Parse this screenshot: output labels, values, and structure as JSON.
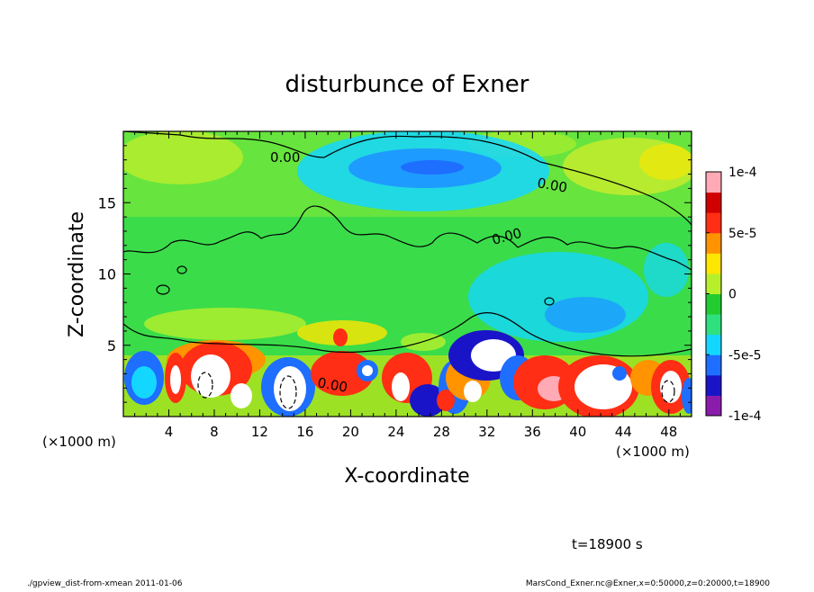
{
  "chart_data": {
    "type": "heatmap",
    "title": "disturbunce of Exner",
    "xlabel": "X-coordinate",
    "ylabel": "Z-coordinate",
    "x_unit": "(×1000 m)",
    "y_unit": "(×1000 m)",
    "xlim": [
      0,
      50
    ],
    "ylim": [
      0,
      20
    ],
    "xticks": [
      4,
      8,
      12,
      16,
      20,
      24,
      28,
      32,
      36,
      40,
      44,
      48
    ],
    "yticks": [
      5,
      10,
      15
    ],
    "colorbar": {
      "ticks": [
        {
          "value": 0.0001,
          "label": "1e-4"
        },
        {
          "value": 5e-05,
          "label": "5e-5"
        },
        {
          "value": 0,
          "label": "0"
        },
        {
          "value": -5e-05,
          "label": "-5e-5"
        },
        {
          "value": -0.0001,
          "label": "-1e-4"
        }
      ],
      "colors": [
        "#8B1CAB",
        "#1A14C8",
        "#1E6EFF",
        "#14D7FF",
        "#2FE07F",
        "#22CC30",
        "#B7F02A",
        "#FFE600",
        "#FF9300",
        "#FF2E14",
        "#D10000",
        "#FFAAB5"
      ]
    },
    "contour_labels": [
      "0.00",
      "0.00",
      "0.00",
      "0.00"
    ],
    "time_label": "t=18900 s",
    "footer_left": "./gpview_dist-from-xmean  2011-01-06",
    "footer_right": "MarsCond_Exner.nc@Exner,x=0:50000,z=0:20000,t=18900"
  }
}
